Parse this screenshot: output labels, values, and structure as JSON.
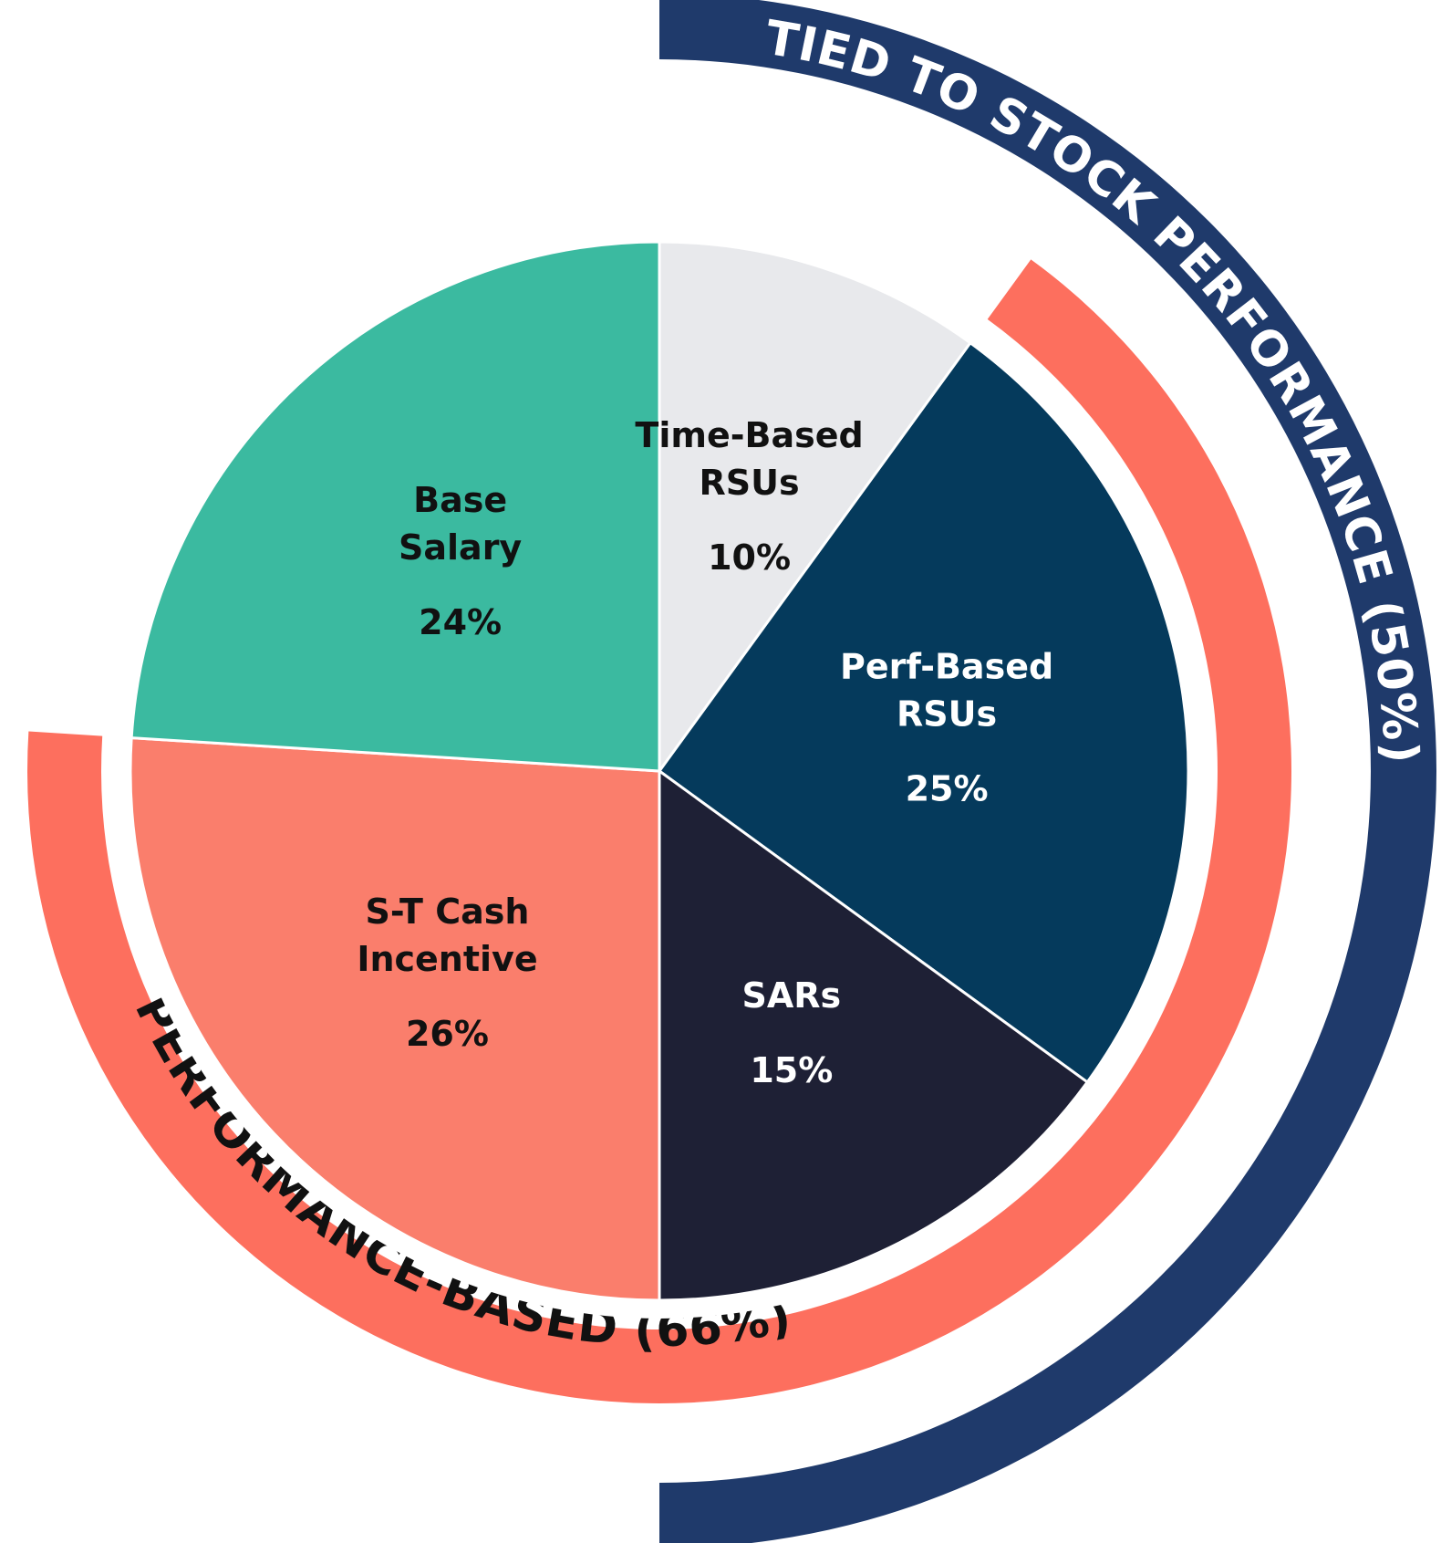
{
  "chart_data": {
    "type": "pie",
    "slices": [
      {
        "lines": [
          "Time-Based",
          "RSUs"
        ],
        "value_label": "10%",
        "value": 10,
        "color": "#e8e9ec",
        "text_color": "#111111"
      },
      {
        "lines": [
          "Perf-Based",
          "RSUs"
        ],
        "value_label": "25%",
        "value": 25,
        "color": "#053a5c",
        "text_color": "#ffffff"
      },
      {
        "lines": [
          "SARs"
        ],
        "value_label": "15%",
        "value": 15,
        "color": "#1e2035",
        "text_color": "#ffffff"
      },
      {
        "lines": [
          "S-T Cash",
          "Incentive"
        ],
        "value_label": "26%",
        "value": 26,
        "color": "#fa7e6c",
        "text_color": "#111111"
      },
      {
        "lines": [
          "Base",
          "Salary"
        ],
        "value_label": "24%",
        "value": 24,
        "color": "#3bbaa0",
        "text_color": "#111111"
      }
    ],
    "outer_arcs": [
      {
        "label": "TIED TO STOCK PERFORMANCE (50%)",
        "color": "#1f3a6b",
        "text_color": "#ffffff"
      },
      {
        "label": "PERFORMANCE-BASED (66%)",
        "color": "#fd6f5e",
        "text_color": "#111111"
      }
    ]
  }
}
